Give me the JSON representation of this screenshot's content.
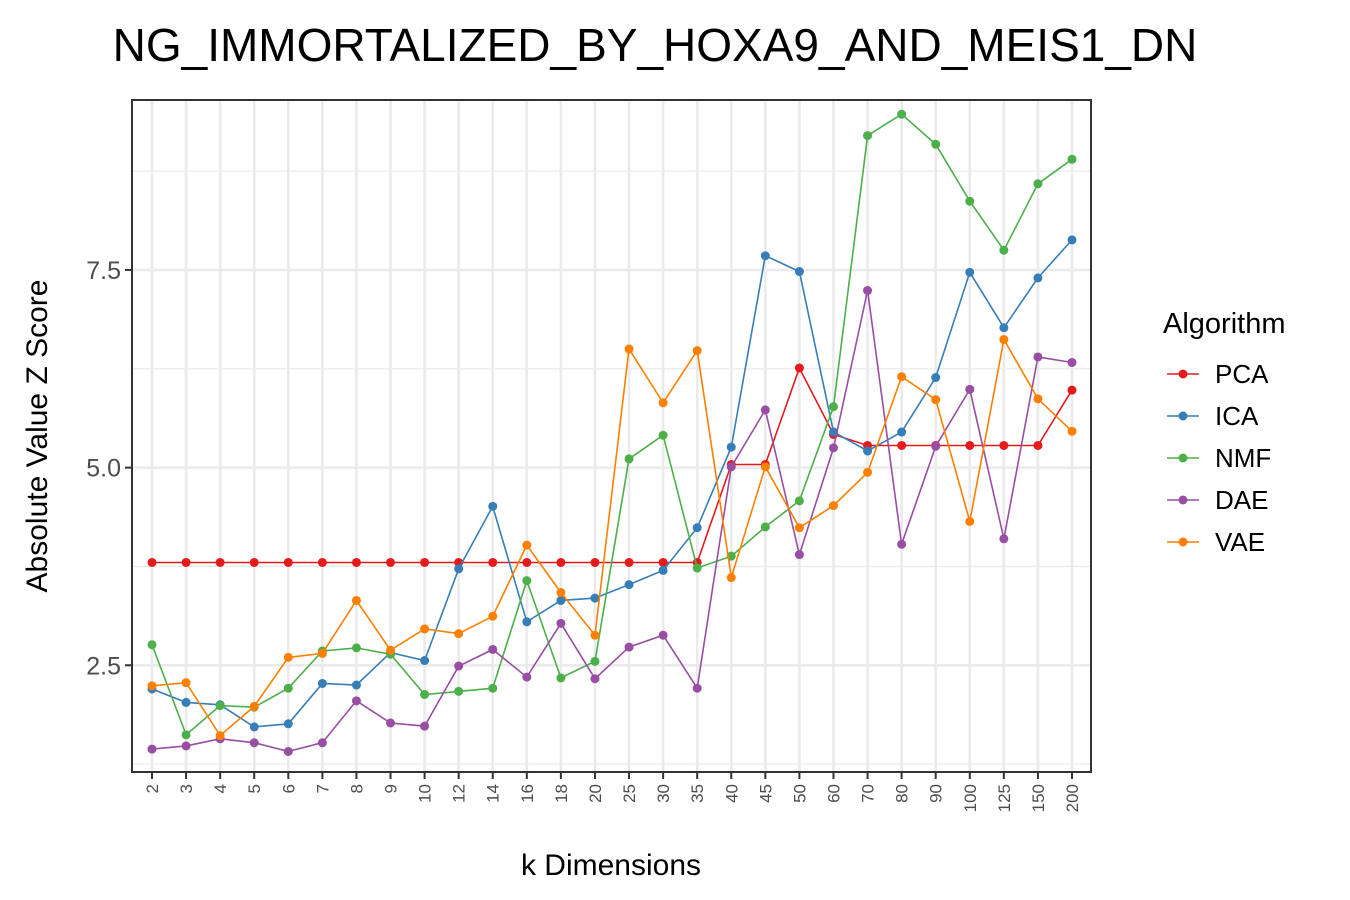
{
  "chart_data": {
    "type": "line",
    "title": "NG_IMMORTALIZED_BY_HOXA9_AND_MEIS1_DN",
    "xlabel": "k Dimensions",
    "ylabel": "Absolute Value Z Score",
    "categories": [
      "2",
      "3",
      "4",
      "5",
      "6",
      "7",
      "8",
      "9",
      "10",
      "12",
      "14",
      "16",
      "18",
      "20",
      "25",
      "30",
      "35",
      "40",
      "45",
      "50",
      "60",
      "70",
      "80",
      "90",
      "100",
      "125",
      "150",
      "200"
    ],
    "ylim": [
      1.15,
      9.65
    ],
    "yticks": [
      2.5,
      5.0,
      7.5
    ],
    "ytick_labels": [
      "2.5",
      "5.0",
      "7.5"
    ],
    "grid": true,
    "legend": {
      "title": "Algorithm",
      "position": "right"
    },
    "series": [
      {
        "name": "PCA",
        "color": "#e41a1c",
        "values": [
          3.8,
          3.8,
          3.8,
          3.8,
          3.8,
          3.8,
          3.8,
          3.8,
          3.8,
          3.8,
          3.8,
          3.8,
          3.8,
          3.8,
          3.8,
          3.8,
          3.8,
          5.04,
          5.04,
          6.26,
          5.42,
          5.28,
          5.28,
          5.28,
          5.28,
          5.28,
          5.28,
          5.98
        ]
      },
      {
        "name": "ICA",
        "color": "#377eb8",
        "values": [
          2.2,
          2.03,
          2.0,
          1.72,
          1.76,
          2.27,
          2.25,
          2.66,
          2.56,
          3.72,
          4.51,
          3.05,
          3.32,
          3.35,
          3.52,
          3.7,
          4.24,
          5.26,
          7.68,
          7.48,
          5.45,
          5.21,
          5.45,
          6.14,
          7.47,
          6.77,
          7.4,
          7.88
        ]
      },
      {
        "name": "NMF",
        "color": "#4daf4a",
        "values": [
          2.76,
          1.62,
          1.99,
          1.97,
          2.21,
          2.68,
          2.72,
          2.64,
          2.13,
          2.17,
          2.21,
          3.57,
          2.34,
          2.55,
          5.11,
          5.41,
          3.73,
          3.88,
          4.25,
          4.58,
          5.77,
          9.2,
          9.47,
          9.09,
          8.37,
          7.75,
          8.59,
          8.9
        ]
      },
      {
        "name": "DAE",
        "color": "#984ea3",
        "values": [
          1.44,
          1.48,
          1.57,
          1.52,
          1.41,
          1.52,
          2.05,
          1.77,
          1.73,
          2.49,
          2.7,
          2.35,
          3.03,
          2.33,
          2.73,
          2.88,
          2.21,
          5.01,
          5.73,
          3.9,
          5.25,
          7.24,
          4.03,
          5.27,
          5.99,
          4.1,
          6.4,
          6.33
        ]
      },
      {
        "name": "VAE",
        "color": "#ff7f00",
        "values": [
          2.24,
          2.28,
          1.61,
          1.98,
          2.6,
          2.65,
          3.32,
          2.69,
          2.96,
          2.9,
          3.12,
          4.02,
          3.42,
          2.88,
          6.5,
          5.82,
          6.48,
          3.61,
          5.01,
          4.24,
          4.52,
          4.94,
          6.15,
          5.86,
          4.32,
          6.62,
          5.87,
          5.46
        ]
      }
    ]
  }
}
